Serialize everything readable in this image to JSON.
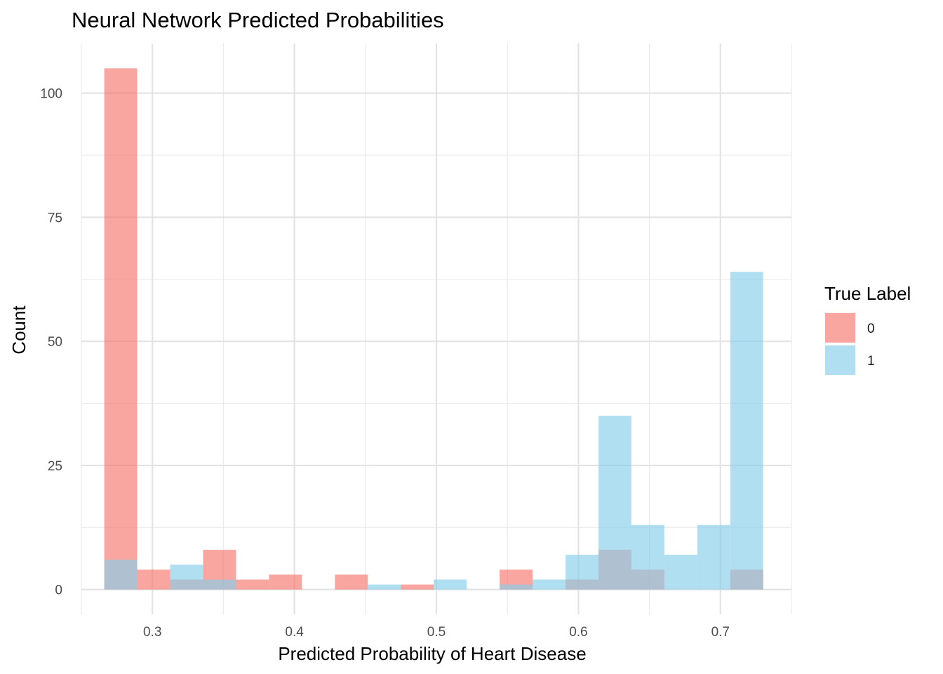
{
  "chart_data": {
    "type": "bar",
    "subtype": "overlapping-histogram",
    "title": "Neural Network Predicted Probabilities",
    "xlabel": "Predicted Probability of Heart Disease",
    "ylabel": "Count",
    "xlim": [
      0.25,
      0.75
    ],
    "ylim": [
      -5,
      110
    ],
    "x_ticks": [
      {
        "value": 0.3,
        "label": "0.3"
      },
      {
        "value": 0.4,
        "label": "0.4"
      },
      {
        "value": 0.5,
        "label": "0.5"
      },
      {
        "value": 0.6,
        "label": "0.6"
      },
      {
        "value": 0.7,
        "label": "0.7"
      }
    ],
    "y_ticks": [
      {
        "value": 0,
        "label": "0"
      },
      {
        "value": 25,
        "label": "25"
      },
      {
        "value": 50,
        "label": "50"
      },
      {
        "value": 75,
        "label": "75"
      },
      {
        "value": 100,
        "label": "100"
      }
    ],
    "grid": true,
    "legend": {
      "title": "True Label",
      "position": "right"
    },
    "bin_centers": [
      0.2777,
      0.3009,
      0.3241,
      0.3473,
      0.3705,
      0.3937,
      0.4169,
      0.4401,
      0.4633,
      0.4865,
      0.5097,
      0.5329,
      0.5561,
      0.5793,
      0.6025,
      0.6257,
      0.6489,
      0.6721,
      0.6953,
      0.7185
    ],
    "bin_width": 0.0232,
    "series": [
      {
        "name": "0",
        "color": "#F8766D",
        "values": [
          105,
          4,
          2,
          8,
          2,
          3,
          0,
          3,
          0,
          1,
          0,
          0,
          4,
          0,
          2,
          8,
          4,
          0,
          0,
          4
        ]
      },
      {
        "name": "1",
        "color": "#87CEEB",
        "values": [
          6,
          0,
          5,
          2,
          0,
          0,
          0,
          0,
          1,
          0,
          2,
          0,
          1,
          2,
          7,
          35,
          13,
          7,
          13,
          64
        ]
      }
    ]
  }
}
